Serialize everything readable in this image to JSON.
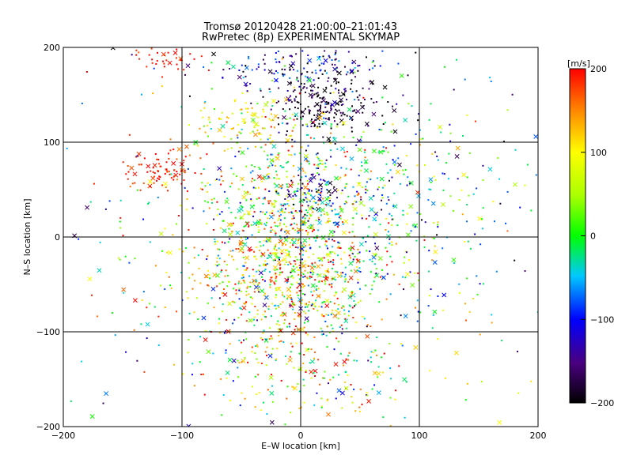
{
  "chart_data": {
    "type": "scatter",
    "title": "Tromsø 20120428 21:00:00–21:01:43",
    "subtitle": "RwPretec (8p) EXPERIMENTAL SKYMAP",
    "xlabel": "E–W location [km]",
    "ylabel": "N–S location [km]",
    "xlim": [
      -200,
      200
    ],
    "ylim": [
      -200,
      200
    ],
    "xticks": [
      -200,
      -100,
      0,
      100,
      200
    ],
    "yticks": [
      -200,
      -100,
      0,
      100,
      200
    ],
    "grid": true,
    "colorbar": {
      "label": "[m/s]",
      "range": [
        -200,
        200
      ],
      "ticks": [
        -200,
        -100,
        0,
        100,
        200
      ],
      "colormap": [
        "#000000",
        "#4a0080",
        "#0000ff",
        "#00c8ff",
        "#00ff00",
        "#ffff00",
        "#ff8c00",
        "#ff0000"
      ]
    },
    "marker_types": [
      "dot",
      "cross"
    ],
    "clusters": [
      {
        "x": 20,
        "y": 140,
        "sx": 25,
        "sy": 15,
        "n": 220,
        "v": -180,
        "vs": 30
      },
      {
        "x": -5,
        "y": 180,
        "sx": 35,
        "sy": 15,
        "n": 140,
        "v": -120,
        "vs": 60
      },
      {
        "x": -120,
        "y": 70,
        "sx": 18,
        "sy": 12,
        "n": 90,
        "v": 185,
        "vs": 20
      },
      {
        "x": -110,
        "y": 190,
        "sx": 15,
        "sy": 8,
        "n": 40,
        "v": 190,
        "vs": 15
      },
      {
        "x": -40,
        "y": 120,
        "sx": 25,
        "sy": 15,
        "n": 90,
        "v": 95,
        "vs": 30
      },
      {
        "x": -10,
        "y": 10,
        "sx": 35,
        "sy": 60,
        "n": 800,
        "v": 60,
        "vs": 90
      },
      {
        "x": 10,
        "y": 50,
        "sx": 15,
        "sy": 12,
        "n": 60,
        "v": -140,
        "vs": 40
      },
      {
        "x": -10,
        "y": -40,
        "sx": 30,
        "sy": 35,
        "n": 250,
        "v": 110,
        "vs": 60
      },
      {
        "x": 60,
        "y": 20,
        "sx": 40,
        "sy": 50,
        "n": 200,
        "v": 10,
        "vs": 80
      },
      {
        "x": 110,
        "y": 60,
        "sx": 50,
        "sy": 60,
        "n": 120,
        "v": -20,
        "vs": 90
      },
      {
        "x": -80,
        "y": -40,
        "sx": 55,
        "sy": 60,
        "n": 160,
        "v": 60,
        "vs": 90
      },
      {
        "x": 0,
        "y": -140,
        "sx": 50,
        "sy": 35,
        "n": 140,
        "v": 80,
        "vs": 90
      },
      {
        "x": 40,
        "y": -80,
        "sx": 60,
        "sy": 50,
        "n": 140,
        "v": 30,
        "vs": 90
      },
      {
        "x": 0,
        "y": 0,
        "sx": 140,
        "sy": 130,
        "n": 260,
        "v": 20,
        "vs": 110
      }
    ]
  }
}
